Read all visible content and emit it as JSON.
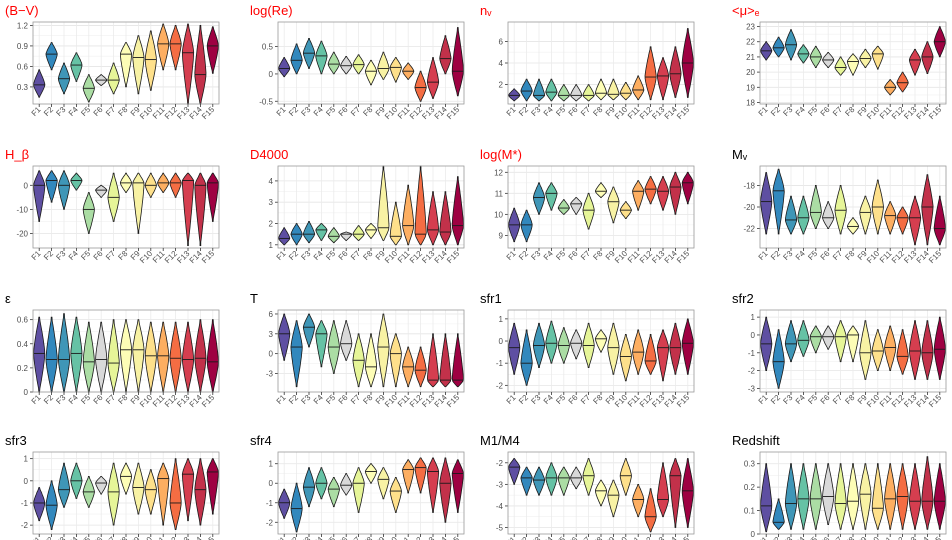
{
  "layout_note": "",
  "palette": [
    "#5e4fa2",
    "#3288bd",
    "#3f96b7",
    "#66c2a5",
    "#abdda4",
    "#d9d9d9",
    "#e6f598",
    "#fdfdb6",
    "#f8f2a4",
    "#fee08b",
    "#fdae61",
    "#f46d43",
    "#d53e4f",
    "#c2314a",
    "#9e0142"
  ],
  "categories": [
    "F1",
    "F2",
    "F3",
    "F4",
    "F5",
    "F6",
    "F7",
    "F8",
    "F9",
    "F10",
    "F11",
    "F12",
    "F13",
    "F14",
    "F15"
  ],
  "chart_data": [
    {
      "type": "violin",
      "title": "(B−V)",
      "title_color": "#ff0000",
      "yticks": [
        0.3,
        0.6,
        0.9,
        1.2
      ],
      "ylim": [
        0.05,
        1.25
      ],
      "medians": [
        0.33,
        0.78,
        0.42,
        0.62,
        0.28,
        0.4,
        0.4,
        0.78,
        0.73,
        0.7,
        0.93,
        0.93,
        0.8,
        0.48,
        0.9
      ],
      "lo": [
        0.15,
        0.55,
        0.2,
        0.38,
        0.08,
        0.32,
        0.2,
        0.3,
        0.2,
        0.25,
        0.55,
        0.55,
        0.05,
        0.05,
        0.5
      ],
      "hi": [
        0.55,
        0.95,
        0.65,
        0.8,
        0.48,
        0.48,
        0.65,
        0.95,
        1.05,
        1.12,
        1.22,
        1.2,
        1.22,
        1.2,
        1.18
      ]
    },
    {
      "type": "violin",
      "title": "log(Re)",
      "title_color": "#ff0000",
      "yticks": [
        -0.5,
        0.0,
        0.5
      ],
      "ylim": [
        -0.55,
        0.95
      ],
      "medians": [
        0.1,
        0.25,
        0.38,
        0.33,
        0.18,
        0.15,
        0.17,
        0.05,
        0.1,
        0.12,
        0.05,
        -0.25,
        -0.15,
        0.28,
        0.05
      ],
      "lo": [
        -0.05,
        0.0,
        0.1,
        0.0,
        0.0,
        0.0,
        0.0,
        -0.2,
        -0.1,
        -0.15,
        -0.1,
        -0.5,
        -0.45,
        0.0,
        -0.4
      ],
      "hi": [
        0.3,
        0.55,
        0.65,
        0.6,
        0.4,
        0.32,
        0.35,
        0.25,
        0.4,
        0.3,
        0.2,
        0.05,
        0.3,
        0.7,
        0.85
      ]
    },
    {
      "type": "violin",
      "title": "nᵥ",
      "title_color": "#ff0000",
      "yticks": [
        2,
        4,
        6
      ],
      "ylim": [
        0.2,
        7.8
      ],
      "medians": [
        1.0,
        1.4,
        1.0,
        1.3,
        1.0,
        1.0,
        1.0,
        1.2,
        1.1,
        1.2,
        1.5,
        2.7,
        2.8,
        3.0,
        4.0
      ],
      "lo": [
        0.5,
        0.5,
        0.5,
        0.5,
        0.5,
        0.5,
        0.5,
        0.6,
        0.6,
        0.6,
        0.6,
        0.6,
        0.6,
        0.8,
        0.8
      ],
      "hi": [
        1.6,
        2.5,
        2.5,
        2.5,
        2.0,
        2.0,
        2.0,
        2.5,
        2.5,
        2.2,
        2.8,
        5.5,
        4.5,
        5.5,
        7.2
      ]
    },
    {
      "type": "violin",
      "title": "<μ>ₑ",
      "title_color": "#ff0000",
      "yticks": [
        18,
        19,
        20,
        21,
        22,
        23
      ],
      "ylim": [
        17.9,
        23.3
      ],
      "medians": [
        21.4,
        21.6,
        21.8,
        21.2,
        21.0,
        20.8,
        20.3,
        20.7,
        20.9,
        21.2,
        19.0,
        19.3,
        20.8,
        21.0,
        22.0
      ],
      "lo": [
        20.8,
        21.0,
        20.8,
        20.6,
        20.3,
        20.3,
        19.8,
        19.8,
        20.3,
        20.2,
        18.5,
        18.7,
        19.8,
        19.9,
        21.0
      ],
      "hi": [
        22.0,
        22.3,
        22.8,
        21.8,
        21.7,
        21.3,
        21.0,
        21.2,
        21.5,
        21.7,
        19.5,
        20.0,
        21.5,
        22.0,
        23.0
      ]
    },
    {
      "type": "violin",
      "title": "H_β",
      "title_color": "#ff0000",
      "yticks": [
        -20,
        -10,
        0
      ],
      "ylim": [
        -26,
        8
      ],
      "medians": [
        0,
        2,
        0,
        2,
        -10,
        -2,
        -5,
        1,
        1,
        0,
        1,
        1,
        2,
        0,
        1
      ],
      "lo": [
        -15,
        -7,
        -10,
        -2,
        -20,
        -5,
        -15,
        -3,
        -20,
        -5,
        -3,
        -5,
        -25,
        -25,
        -15
      ],
      "hi": [
        6,
        6,
        6,
        5,
        -3,
        0,
        5,
        5,
        5,
        5,
        5,
        5,
        5,
        5,
        5
      ]
    },
    {
      "type": "violin",
      "title": "D4000",
      "title_color": "#ff0000",
      "yticks": [
        1,
        2,
        3,
        4
      ],
      "ylim": [
        0.85,
        4.7
      ],
      "medians": [
        1.3,
        1.5,
        1.5,
        1.7,
        1.4,
        1.5,
        1.5,
        1.7,
        1.8,
        1.4,
        1.9,
        1.5,
        1.7,
        1.6,
        1.9
      ],
      "lo": [
        1.0,
        1.0,
        1.1,
        1.2,
        1.1,
        1.2,
        1.2,
        1.3,
        1.2,
        1.0,
        1.0,
        1.0,
        1.0,
        1.0,
        1.0
      ],
      "hi": [
        1.8,
        2.0,
        2.1,
        2.0,
        1.8,
        1.6,
        1.9,
        2.0,
        4.7,
        3.0,
        3.8,
        4.7,
        3.5,
        3.5,
        4.2
      ]
    },
    {
      "type": "violin",
      "title": "log(M*)",
      "title_color": "#ff0000",
      "yticks": [
        9,
        10,
        11,
        12
      ],
      "ylim": [
        8.4,
        12.3
      ],
      "medians": [
        9.5,
        9.5,
        10.8,
        11.0,
        10.3,
        10.5,
        10.2,
        11.1,
        10.6,
        10.2,
        11.1,
        11.2,
        11.1,
        11.3,
        11.5
      ],
      "lo": [
        8.7,
        8.7,
        10.0,
        10.2,
        10.0,
        10.0,
        9.3,
        10.8,
        9.6,
        9.8,
        10.2,
        10.5,
        10.2,
        10.0,
        10.5
      ],
      "hi": [
        10.3,
        10.2,
        11.5,
        11.5,
        10.7,
        10.8,
        11.0,
        11.5,
        11.3,
        10.6,
        11.6,
        11.8,
        11.8,
        12.0,
        12.0
      ]
    },
    {
      "type": "violin",
      "title": "Mᵥ",
      "title_color": "#000000",
      "yticks": [
        -22,
        -20,
        -18
      ],
      "ylim": [
        -23.8,
        -16.2
      ],
      "medians": [
        -19.5,
        -18.5,
        -21.2,
        -21.0,
        -20.5,
        -21.0,
        -20.3,
        -21.8,
        -20.5,
        -20.0,
        -20.8,
        -21.0,
        -21.0,
        -20.0,
        -22.0
      ],
      "lo": [
        -22.5,
        -22.5,
        -22.5,
        -22.5,
        -22.0,
        -22.0,
        -22.5,
        -22.5,
        -22.5,
        -22.5,
        -22.5,
        -22.5,
        -23.5,
        -23.5,
        -23.5
      ],
      "hi": [
        -16.8,
        -16.5,
        -19.0,
        -19.0,
        -18.0,
        -19.5,
        -18.0,
        -21.0,
        -19.0,
        -17.5,
        -19.5,
        -20.0,
        -19.0,
        -17.0,
        -19.0
      ]
    },
    {
      "type": "violin",
      "title": "ε",
      "title_color": "#000000",
      "yticks": [
        0.0,
        0.2,
        0.4,
        0.6
      ],
      "ylim": [
        0.0,
        0.68
      ],
      "medians": [
        0.32,
        0.27,
        0.27,
        0.32,
        0.25,
        0.27,
        0.24,
        0.35,
        0.35,
        0.3,
        0.3,
        0.28,
        0.27,
        0.28,
        0.25
      ],
      "lo": [
        0.0,
        0.0,
        0.0,
        0.0,
        0.0,
        0.0,
        0.0,
        0.0,
        0.0,
        0.0,
        0.0,
        0.0,
        0.0,
        0.0,
        0.0
      ],
      "hi": [
        0.62,
        0.62,
        0.65,
        0.62,
        0.58,
        0.58,
        0.6,
        0.6,
        0.6,
        0.58,
        0.58,
        0.58,
        0.58,
        0.6,
        0.6
      ]
    },
    {
      "type": "violin",
      "title": "T",
      "title_color": "#000000",
      "yticks": [
        -3,
        0,
        3,
        6
      ],
      "ylim": [
        -5.8,
        6.6
      ],
      "medians": [
        3.0,
        1.0,
        4.0,
        3.0,
        1.0,
        1.5,
        -1.0,
        -2.0,
        1.0,
        0.0,
        -2.0,
        -2.5,
        -4.0,
        -4.0,
        -4.0
      ],
      "lo": [
        -1.0,
        -5.0,
        1.0,
        -2.0,
        -3.0,
        -1.0,
        -5.0,
        -5.0,
        -5.0,
        -5.0,
        -5.0,
        -5.0,
        -5.0,
        -5.0,
        -5.0
      ],
      "hi": [
        6.0,
        5.0,
        6.0,
        5.0,
        5.0,
        5.0,
        3.0,
        3.0,
        6.0,
        3.0,
        1.0,
        1.0,
        3.0,
        3.0,
        3.0
      ]
    },
    {
      "type": "violin",
      "title": "sfr1",
      "title_color": "#000000",
      "yticks": [
        -2,
        -1,
        0,
        1
      ],
      "ylim": [
        -2.3,
        1.4
      ],
      "medians": [
        -0.3,
        -1.0,
        -0.2,
        -0.1,
        -0.2,
        -0.1,
        -0.2,
        0.1,
        -0.3,
        -0.7,
        -0.5,
        -0.9,
        -0.3,
        -0.3,
        -0.1
      ],
      "lo": [
        -1.5,
        -2.0,
        -1.2,
        -1.0,
        -1.0,
        -0.8,
        -1.2,
        -0.5,
        -1.5,
        -1.8,
        -1.5,
        -1.5,
        -1.8,
        -1.5,
        -1.5
      ],
      "hi": [
        0.8,
        0.5,
        0.8,
        0.9,
        0.6,
        0.5,
        0.8,
        0.5,
        0.8,
        0.3,
        0.5,
        0.3,
        0.5,
        0.8,
        1.0
      ]
    },
    {
      "type": "violin",
      "title": "sfr2",
      "title_color": "#000000",
      "yticks": [
        -3,
        -2,
        -1,
        0,
        1
      ],
      "ylim": [
        -3.2,
        1.4
      ],
      "medians": [
        -0.5,
        -1.5,
        -0.5,
        -0.3,
        -0.1,
        -0.1,
        -0.1,
        0.0,
        -1.0,
        -0.9,
        -0.7,
        -1.2,
        -0.9,
        -1.0,
        -0.8
      ],
      "lo": [
        -2.0,
        -3.0,
        -1.5,
        -1.2,
        -1.0,
        -0.8,
        -1.5,
        -1.5,
        -2.5,
        -2.0,
        -2.0,
        -2.2,
        -2.5,
        -2.5,
        -2.5
      ],
      "hi": [
        1.0,
        0.3,
        0.8,
        0.8,
        0.5,
        0.5,
        0.8,
        0.5,
        0.8,
        0.3,
        0.5,
        0.3,
        0.8,
        0.8,
        1.0
      ]
    },
    {
      "type": "violin",
      "title": "sfr3",
      "title_color": "#000000",
      "yticks": [
        -2,
        -1,
        0,
        1
      ],
      "ylim": [
        -2.4,
        1.3
      ],
      "medians": [
        -1.0,
        -1.1,
        -0.4,
        0.0,
        -0.5,
        -0.1,
        -0.5,
        0.2,
        -0.3,
        -0.4,
        0.1,
        -1.0,
        0.3,
        -0.4,
        0.4
      ],
      "lo": [
        -1.8,
        -2.2,
        -1.2,
        -0.8,
        -1.2,
        -0.6,
        -2.0,
        -0.6,
        -1.5,
        -1.5,
        -2.0,
        -2.2,
        -1.8,
        -2.0,
        -1.5
      ],
      "hi": [
        -0.3,
        0.0,
        0.8,
        0.8,
        0.2,
        0.2,
        0.8,
        0.8,
        0.8,
        0.5,
        0.8,
        1.0,
        1.0,
        1.0,
        1.0
      ]
    },
    {
      "type": "violin",
      "title": "sfr4",
      "title_color": "#000000",
      "yticks": [
        -2,
        -1,
        0,
        1
      ],
      "ylim": [
        -2.6,
        1.6
      ],
      "medians": [
        -1.0,
        -1.3,
        -0.2,
        0.0,
        -0.3,
        -0.1,
        0.0,
        0.6,
        0.2,
        -0.4,
        0.7,
        0.8,
        0.6,
        0.0,
        0.5
      ],
      "lo": [
        -1.8,
        -2.5,
        -1.2,
        -0.8,
        -1.2,
        -0.6,
        -1.5,
        0.0,
        -0.8,
        -1.5,
        -0.5,
        -0.5,
        -1.5,
        -2.0,
        -1.5
      ],
      "hi": [
        -0.3,
        0.0,
        0.8,
        0.8,
        0.3,
        0.5,
        0.8,
        1.0,
        0.8,
        0.3,
        1.2,
        1.3,
        1.3,
        1.3,
        1.2
      ]
    },
    {
      "type": "violin",
      "title": "M1/M4",
      "title_color": "#000000",
      "yticks": [
        -5,
        -4,
        -3,
        -2
      ],
      "ylim": [
        -5.3,
        -1.5
      ],
      "medians": [
        -2.2,
        -2.7,
        -2.8,
        -2.7,
        -2.7,
        -2.7,
        -2.6,
        -3.3,
        -3.5,
        -2.6,
        -3.7,
        -4.5,
        -3.7,
        -2.6,
        -3.3
      ],
      "lo": [
        -3.0,
        -3.5,
        -3.5,
        -3.5,
        -3.5,
        -3.2,
        -3.5,
        -4.0,
        -4.5,
        -3.5,
        -4.5,
        -5.2,
        -4.5,
        -5.0,
        -5.0
      ],
      "hi": [
        -1.8,
        -2.2,
        -2.2,
        -2.0,
        -2.2,
        -2.2,
        -1.8,
        -2.8,
        -2.8,
        -1.8,
        -3.0,
        -3.2,
        -2.0,
        -1.8,
        -1.8
      ]
    },
    {
      "type": "violin",
      "title": "Redshift",
      "title_color": "#000000",
      "yticks": [
        0.0,
        0.1,
        0.2,
        0.3
      ],
      "ylim": [
        0.0,
        0.35
      ],
      "medians": [
        0.12,
        0.05,
        0.13,
        0.15,
        0.15,
        0.16,
        0.13,
        0.14,
        0.17,
        0.11,
        0.15,
        0.16,
        0.14,
        0.14,
        0.14
      ],
      "lo": [
        0.01,
        0.02,
        0.02,
        0.02,
        0.02,
        0.04,
        0.02,
        0.02,
        0.02,
        0.02,
        0.02,
        0.02,
        0.02,
        0.02,
        0.02
      ],
      "hi": [
        0.3,
        0.15,
        0.3,
        0.3,
        0.3,
        0.3,
        0.3,
        0.3,
        0.3,
        0.3,
        0.3,
        0.3,
        0.3,
        0.33,
        0.3
      ]
    }
  ]
}
